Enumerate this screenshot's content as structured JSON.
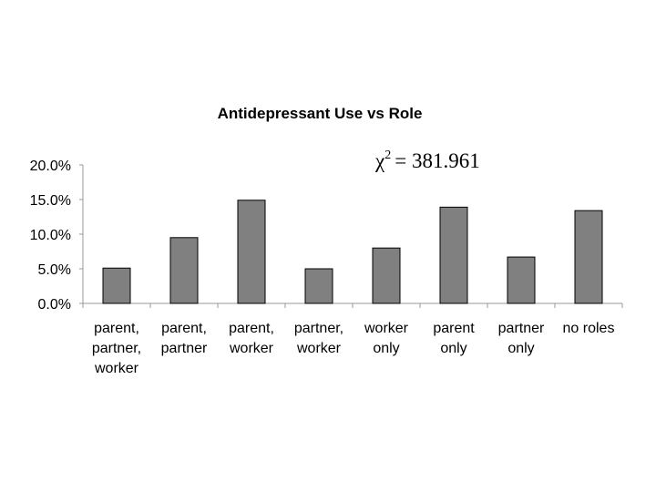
{
  "chart_data": {
    "type": "bar",
    "title": "Antidepressant Use vs Role",
    "annotation": {
      "symbol": "χ",
      "superscript": "2",
      "text": "= 381.961"
    },
    "categories": [
      [
        "parent,",
        "partner,",
        "worker"
      ],
      [
        "parent,",
        "partner"
      ],
      [
        "parent,",
        "worker"
      ],
      [
        "partner,",
        "worker"
      ],
      [
        "worker",
        "only"
      ],
      [
        "parent",
        "only"
      ],
      [
        "partner",
        "only"
      ],
      [
        "no roles"
      ]
    ],
    "values": [
      5.1,
      9.5,
      14.9,
      5.0,
      8.0,
      13.9,
      6.7,
      13.4
    ],
    "color": "#808080",
    "ylim": [
      0,
      20
    ],
    "yticks": [
      {
        "value": 0,
        "label": "0.0%"
      },
      {
        "value": 5,
        "label": "5.0%"
      },
      {
        "value": 10,
        "label": "10.0%"
      },
      {
        "value": 15,
        "label": "15.0%"
      },
      {
        "value": 20,
        "label": "20.0%"
      }
    ],
    "grid": false
  }
}
